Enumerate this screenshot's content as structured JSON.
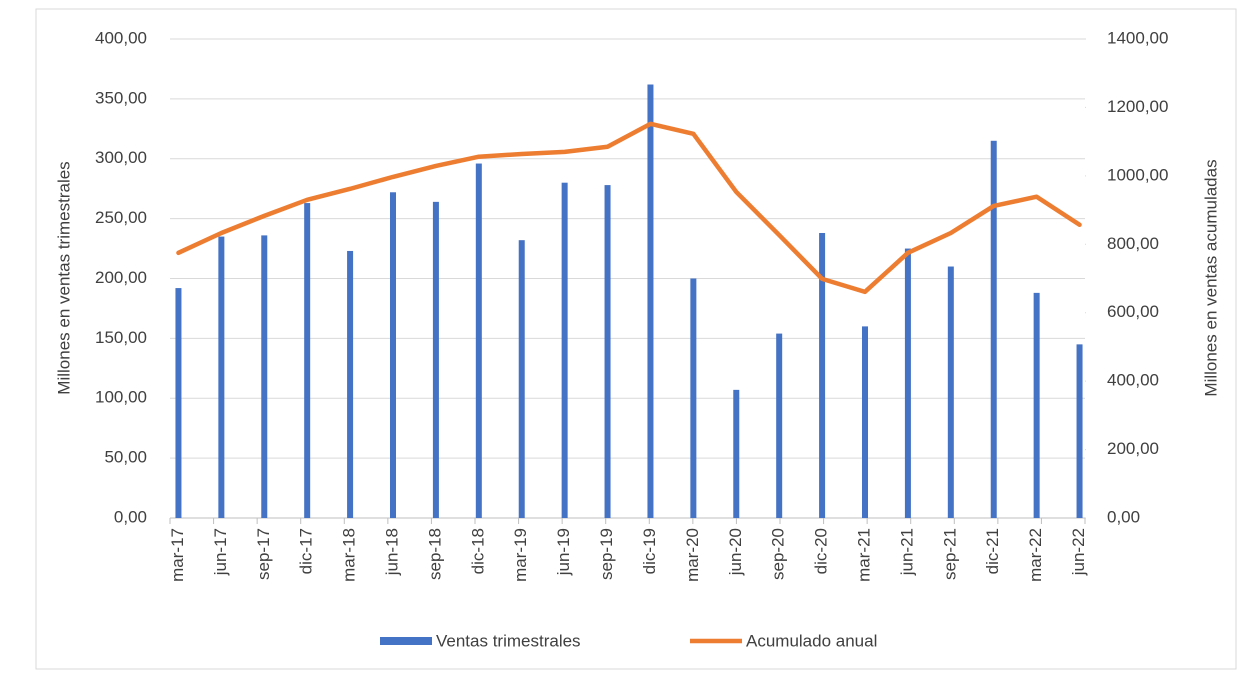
{
  "chart_data": {
    "type": "bar",
    "categories": [
      "mar-17",
      "jun-17",
      "sep-17",
      "dic-17",
      "mar-18",
      "jun-18",
      "sep-18",
      "dic-18",
      "mar-19",
      "jun-19",
      "sep-19",
      "dic-19",
      "mar-20",
      "jun-20",
      "sep-20",
      "dic-20",
      "mar-21",
      "jun-21",
      "sep-21",
      "dic-21",
      "mar-22",
      "jun-22"
    ],
    "series": [
      {
        "name": "Ventas trimestrales",
        "type": "bar",
        "color": "#4472c4",
        "values": [
          192,
          235,
          236,
          263,
          223,
          272,
          264,
          296,
          232,
          280,
          278,
          362,
          200,
          107,
          154,
          238,
          160,
          225,
          210,
          315,
          188,
          145
        ]
      },
      {
        "name": "Acumulado anual",
        "type": "line",
        "axis": "y2",
        "color": "#ed7d31",
        "values": [
          775,
          833,
          883,
          930,
          962,
          997,
          1029,
          1056,
          1064,
          1070,
          1085,
          1152,
          1123,
          953,
          827,
          699,
          661,
          775,
          833,
          912,
          939,
          857
        ]
      }
    ],
    "ylabel": "Millones en ventas trimestrales",
    "y2label": "Millones en ventas acumuladas",
    "ylim": [
      0,
      400
    ],
    "yticks": [
      {
        "value": 0,
        "label": "0,00"
      },
      {
        "value": 50,
        "label": "50,00"
      },
      {
        "value": 100,
        "label": "100,00"
      },
      {
        "value": 150,
        "label": "150,00"
      },
      {
        "value": 200,
        "label": "200,00"
      },
      {
        "value": 250,
        "label": "250,00"
      },
      {
        "value": 300,
        "label": "300,00"
      },
      {
        "value": 350,
        "label": "350,00"
      },
      {
        "value": 400,
        "label": "400,00"
      }
    ],
    "y2lim": [
      0,
      1400
    ],
    "y2ticks": [
      {
        "value": 0,
        "label": "0,00"
      },
      {
        "value": 200,
        "label": "200,00"
      },
      {
        "value": 400,
        "label": "400,00"
      },
      {
        "value": 600,
        "label": "600,00"
      },
      {
        "value": 800,
        "label": "800,00"
      },
      {
        "value": 1000,
        "label": "1000,00"
      },
      {
        "value": 1200,
        "label": "1200,00"
      },
      {
        "value": 1400,
        "label": "1400,00"
      }
    ],
    "grid": true,
    "legend": "bottom"
  }
}
